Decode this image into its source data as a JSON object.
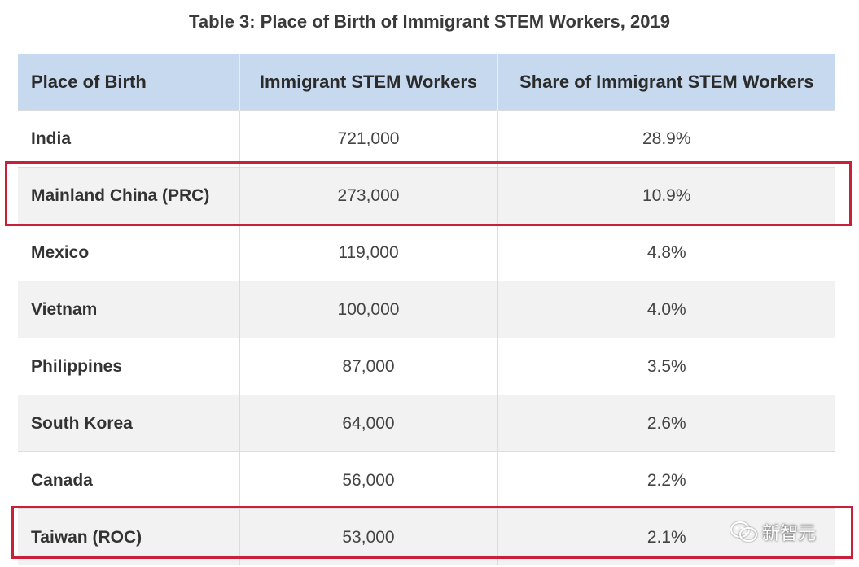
{
  "title": "Table 3: Place of Birth of Immigrant STEM Workers, 2019",
  "headers": [
    "Place of Birth",
    "Immigrant STEM Workers",
    "Share of Immigrant STEM Workers"
  ],
  "rows": [
    {
      "place": "India",
      "workers": "721,000",
      "share": "28.9%"
    },
    {
      "place": "Mainland China (PRC)",
      "workers": "273,000",
      "share": "10.9%"
    },
    {
      "place": "Mexico",
      "workers": "119,000",
      "share": "4.8%"
    },
    {
      "place": "Vietnam",
      "workers": "100,000",
      "share": "4.0%"
    },
    {
      "place": "Philippines",
      "workers": "87,000",
      "share": "3.5%"
    },
    {
      "place": "South Korea",
      "workers": "64,000",
      "share": "2.6%"
    },
    {
      "place": "Canada",
      "workers": "56,000",
      "share": "2.2%"
    },
    {
      "place": "Taiwan (ROC)",
      "workers": "53,000",
      "share": "2.1%"
    }
  ],
  "highlight_color": "#c8203a",
  "header_color": "#c6d9ef",
  "watermark": {
    "icon": "wechat-icon",
    "text": "新智元"
  }
}
